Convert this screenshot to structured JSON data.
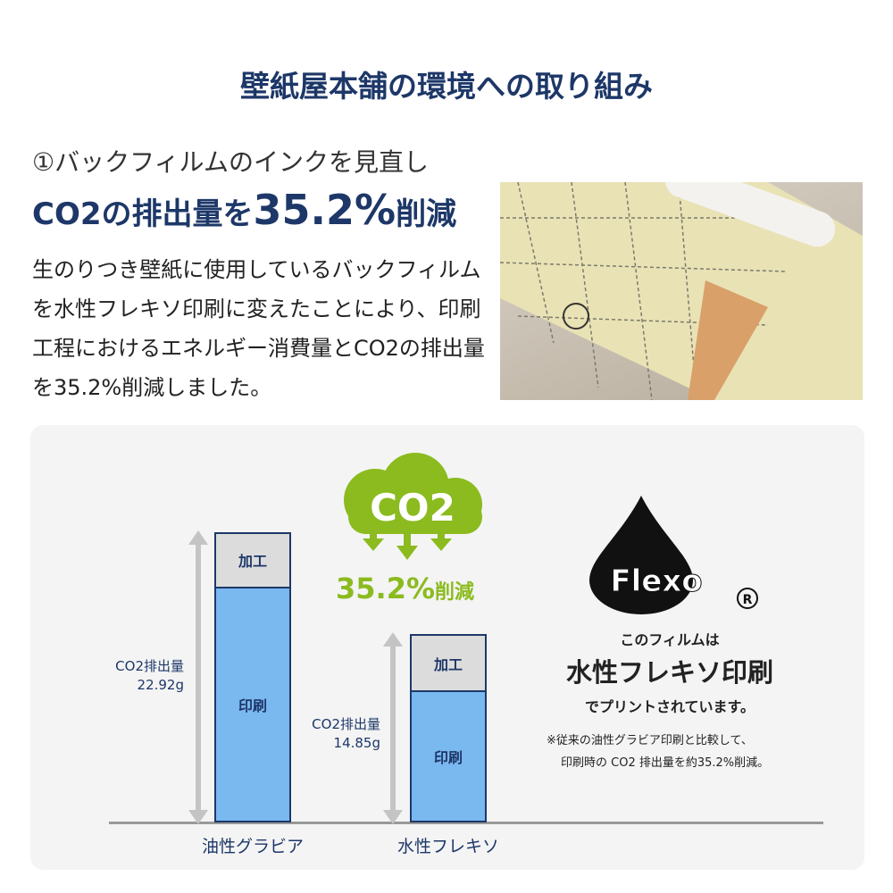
{
  "title": "壁紙屋本舗の環境への取り組み",
  "section": {
    "heading": "①バックフィルムのインクを見直し",
    "headline_pre": "CO2の排出量を",
    "headline_value": "35.2%",
    "headline_post": "削減",
    "body": "生のりつき壁紙に使用しているバックフィルムを水性フレキソ印刷に変えたことにより、印刷工程におけるエネルギー消費量とCO2の排出量を35.2%削減しました。"
  },
  "chart": {
    "bars": [
      {
        "category": "油性グラビア",
        "total_label": "CO2排出量",
        "total_value": "22.92g",
        "total": 22.92,
        "processing_g_est": 4.3,
        "top_label": "加工",
        "bottom_label": "印刷"
      },
      {
        "category": "水性フレキソ",
        "total_label": "CO2排出量",
        "total_value": "14.85g",
        "total": 14.85,
        "processing_g_est": 4.4,
        "top_label": "加工",
        "bottom_label": "印刷"
      }
    ],
    "cloud_text": "CO2",
    "reduction_value": "35.2%",
    "reduction_suffix": "削減"
  },
  "flexo": {
    "logo_text": "Flexo",
    "registered": "®",
    "line1": "このフィルムは",
    "line2": "水性フレキソ印刷",
    "line3": "でプリントされています。",
    "note1": "※従来の油性グラビア印刷と比較して、",
    "note2": "印刷時の CO2 排出量を約35.2%削減。"
  },
  "colors": {
    "navy": "#1d3768",
    "green": "#8bbb1f",
    "bar_blue": "#7ab8f0",
    "bar_gray": "#dcdcdc"
  }
}
